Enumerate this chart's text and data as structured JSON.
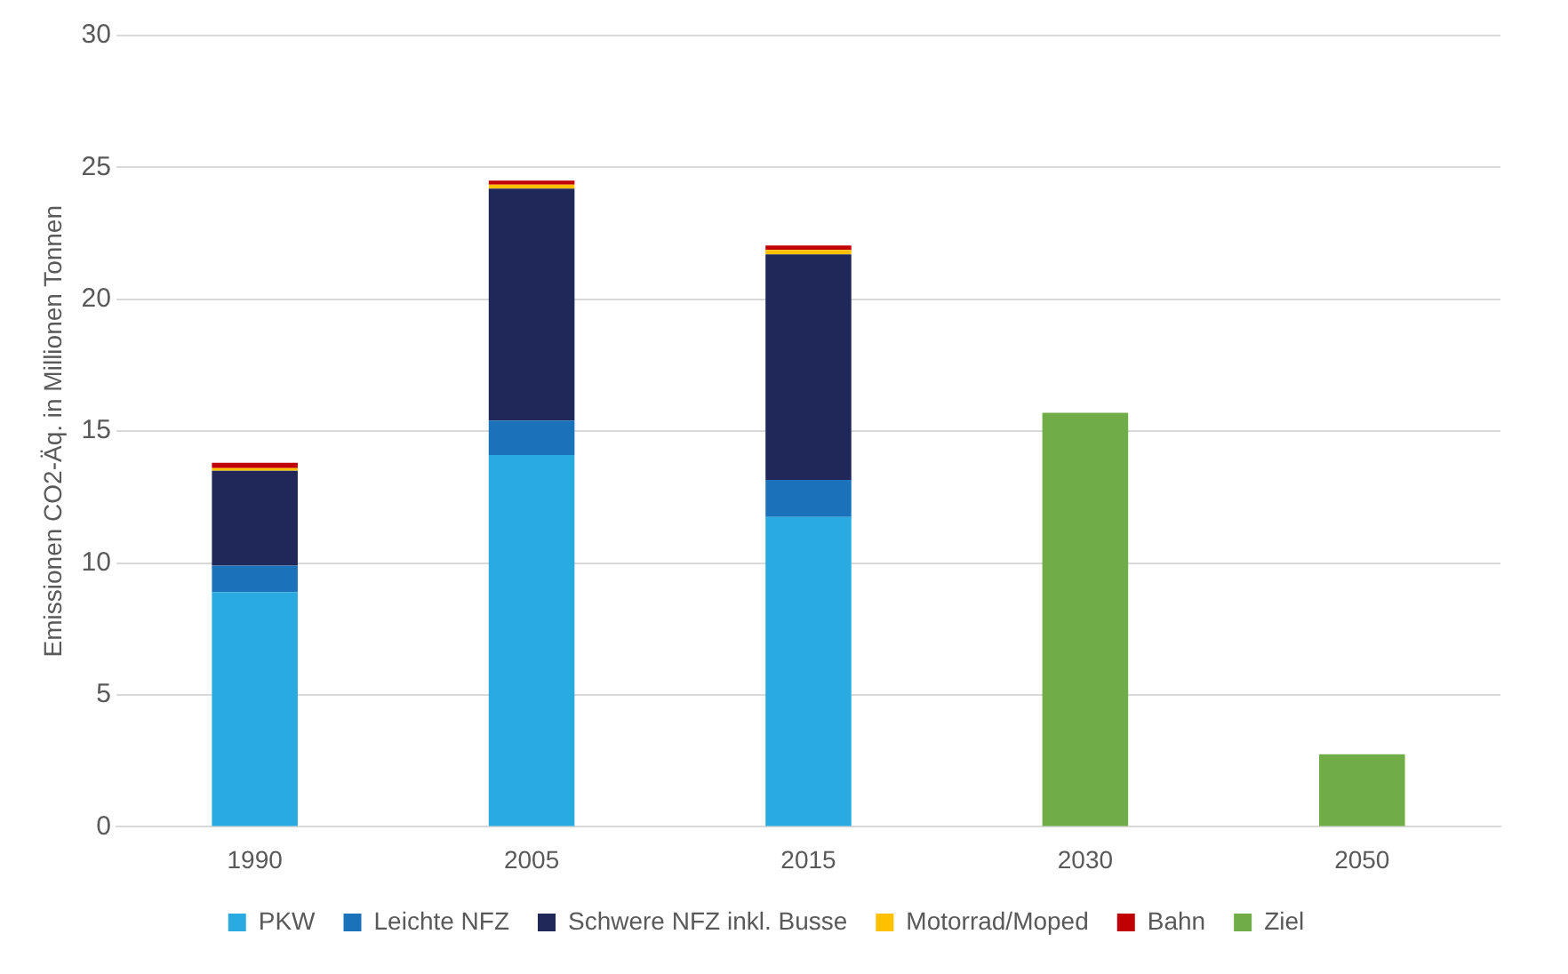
{
  "chart_data": {
    "type": "bar",
    "stacked": true,
    "ylabel": "Emissionen CO2-Äq. in Millionen Tonnen",
    "categories": [
      "1990",
      "2005",
      "2015",
      "2030",
      "2050"
    ],
    "ylim": [
      0,
      30
    ],
    "yticks": [
      0,
      5,
      10,
      15,
      20,
      25,
      30
    ],
    "grid": "y",
    "legend": "bottom",
    "series": [
      {
        "name": "PKW",
        "color": "#29abe2",
        "values": [
          8.9,
          14.1,
          11.75,
          null,
          null
        ]
      },
      {
        "name": "Leichte NFZ",
        "color": "#1a72bb",
        "values": [
          1.0,
          1.3,
          1.4,
          null,
          null
        ]
      },
      {
        "name": "Schwere NFZ inkl. Busse",
        "color": "#1f2859",
        "values": [
          3.6,
          8.8,
          8.55,
          null,
          null
        ]
      },
      {
        "name": "Motorrad/Moped",
        "color": "#ffc000",
        "values": [
          0.1,
          0.15,
          0.17,
          null,
          null
        ]
      },
      {
        "name": "Bahn",
        "color": "#c00000",
        "values": [
          0.2,
          0.15,
          0.17,
          null,
          null
        ]
      },
      {
        "name": "Ziel",
        "color": "#70ad47",
        "values": [
          null,
          null,
          null,
          15.7,
          2.75
        ]
      }
    ]
  }
}
